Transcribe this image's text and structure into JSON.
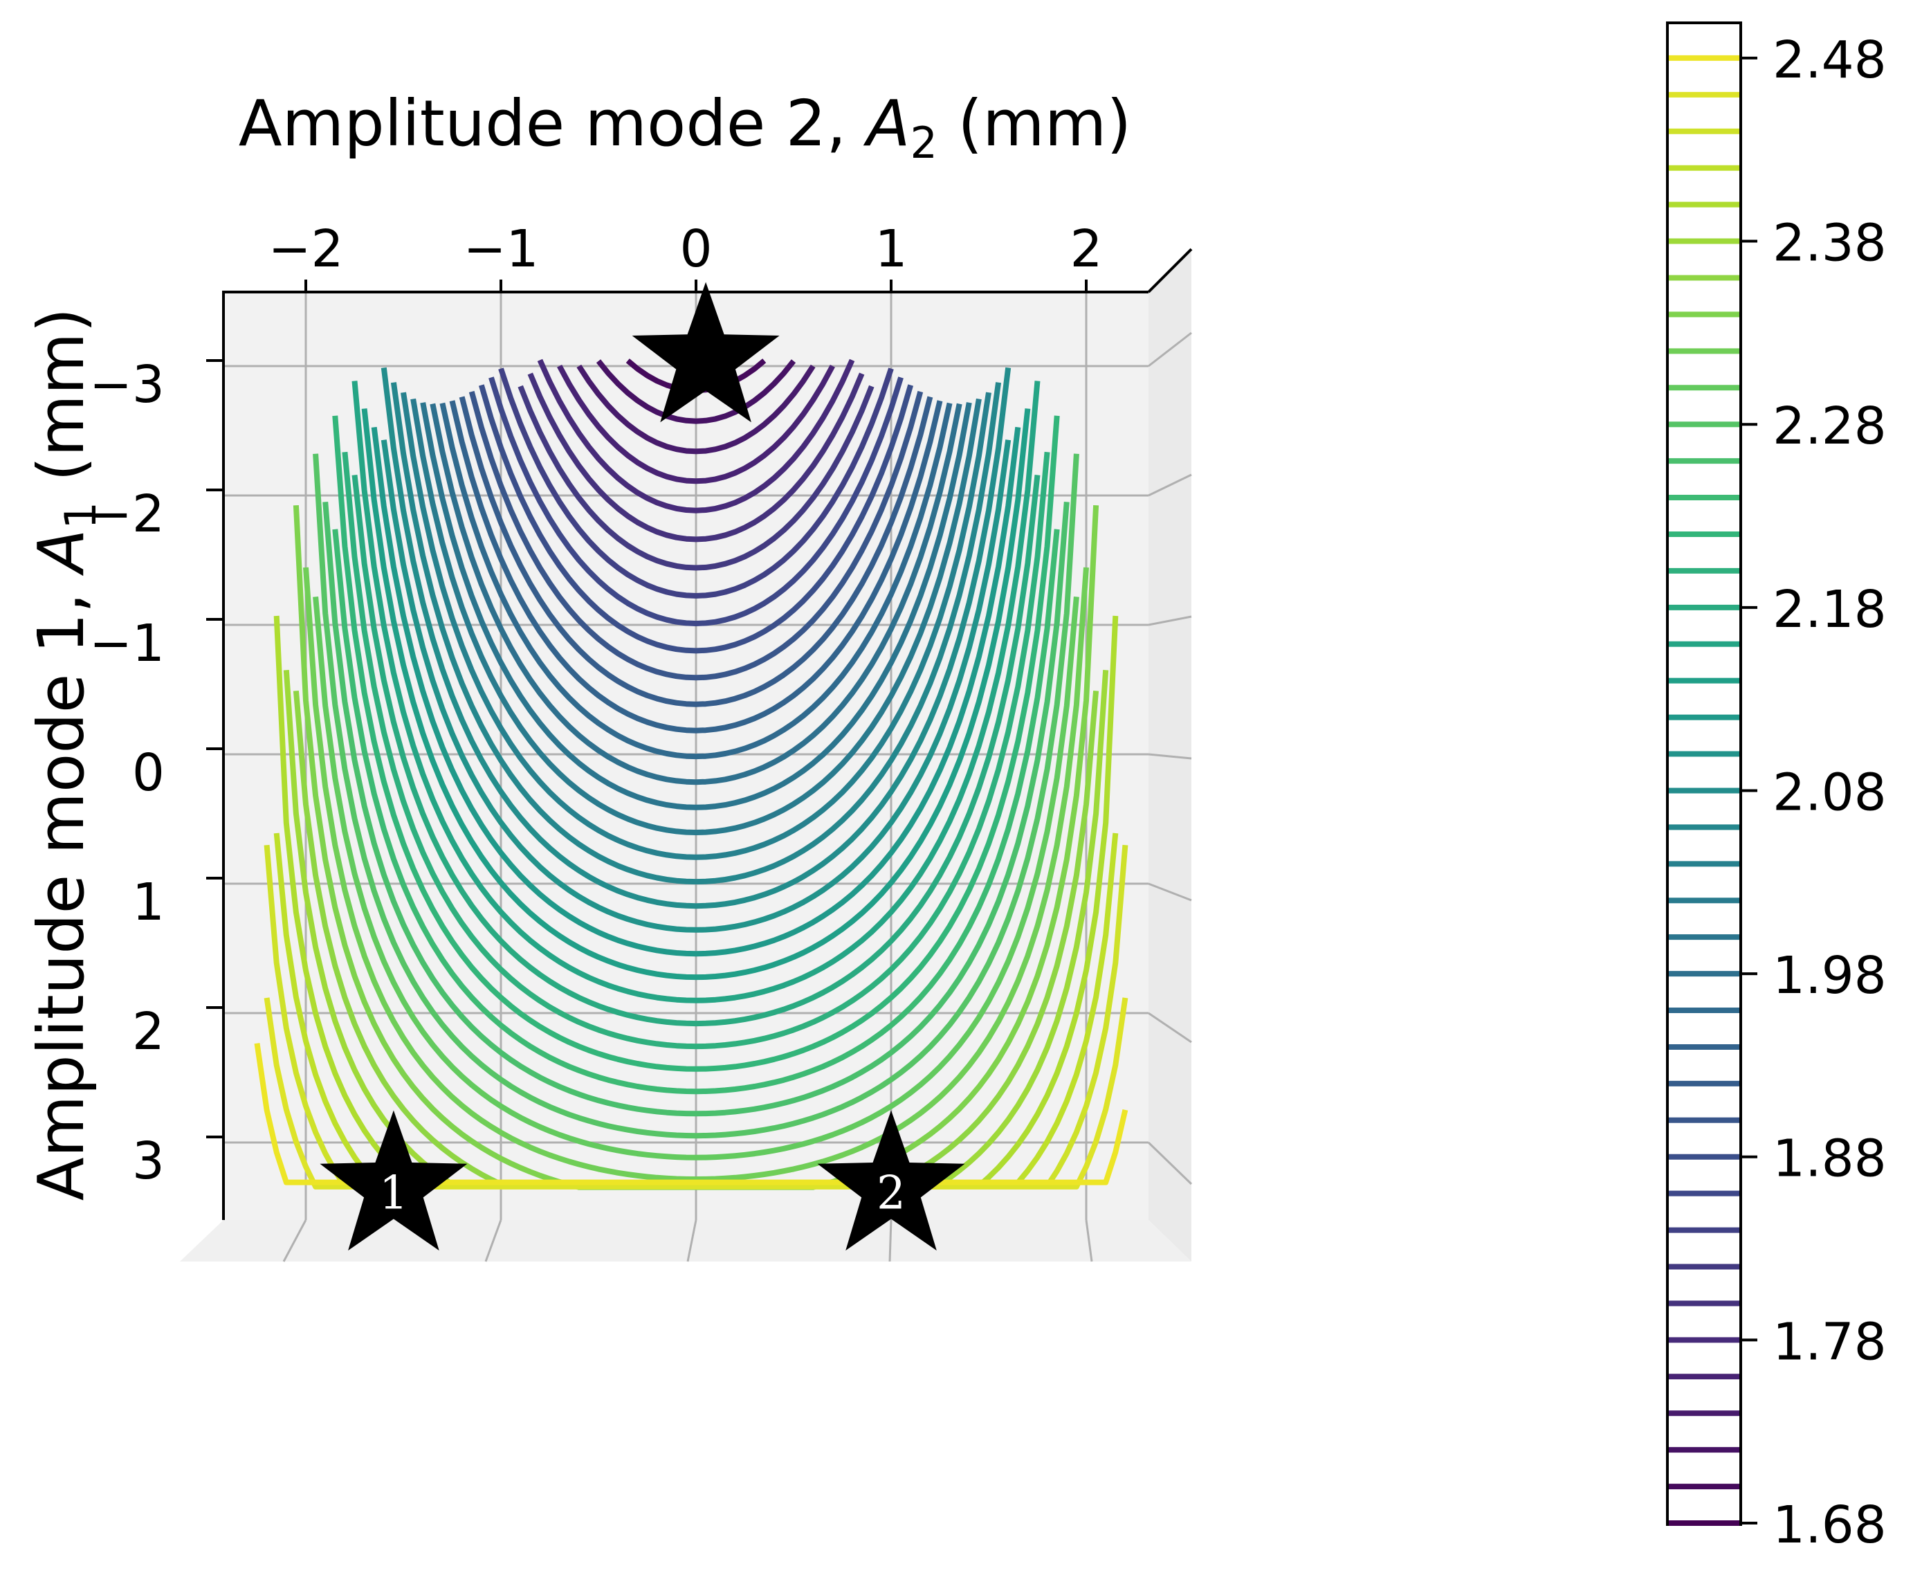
{
  "chart_data": {
    "type": "contour",
    "xlabel_text": "Amplitude mode 2, ",
    "xlabel_var": "A",
    "xlabel_sub": "2",
    "xlabel_unit": " (mm)",
    "ylabel_text": "Amplitude mode 1, ",
    "ylabel_var": "A",
    "ylabel_sub": "1",
    "ylabel_unit": " (mm)",
    "x_ticks": [
      -2,
      -1,
      0,
      1,
      2
    ],
    "x_tick_labels": [
      "−2",
      "−1",
      "0",
      "1",
      "2"
    ],
    "y_ticks": [
      -3,
      -2,
      -1,
      0,
      1,
      2,
      3
    ],
    "y_tick_labels": [
      "−3",
      "−2",
      "−1",
      "0",
      "1",
      "2",
      "3"
    ],
    "xlim": [
      -2.3,
      2.3
    ],
    "ylim": [
      -3.3,
      3.3
    ],
    "y_inverted": true,
    "colormap": "viridis",
    "colorbar": {
      "min": 1.68,
      "max": 2.5,
      "levels_start": 1.68,
      "levels_step": 0.02,
      "levels_count": 41,
      "ticks": [
        1.68,
        1.78,
        1.88,
        1.98,
        2.08,
        2.18,
        2.28,
        2.38,
        2.48
      ],
      "tick_labels": [
        "1.68",
        "1.78",
        "1.88",
        "1.98",
        "2.08",
        "2.18",
        "2.28",
        "2.38",
        "2.48"
      ]
    },
    "markers": [
      {
        "name": "optimum",
        "label": "",
        "x": 0.05,
        "y": -3.05
      },
      {
        "name": "point-1",
        "label": "1",
        "x": -1.55,
        "y": 3.35
      },
      {
        "name": "point-2",
        "label": "2",
        "x": 1.0,
        "y": 3.35
      }
    ],
    "colors": {
      "pane": "#f2f2f2",
      "grid": "#b0b0b0",
      "axis": "#000000",
      "marker": "#000000",
      "marker_label": "#ffffff"
    }
  }
}
